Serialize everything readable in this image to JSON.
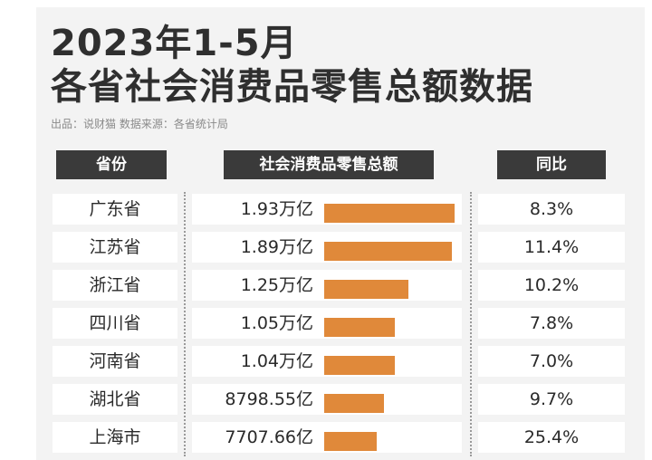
{
  "title_line1": "2023年1-5月",
  "title_line2": "各省社会消费品零售总额数据",
  "source": "出品：说财猫  数据来源：各省统计局",
  "headers": {
    "province": "省份",
    "sales": "社会消费品零售总额",
    "yoy": "同比"
  },
  "colors": {
    "bar": "#e0893a",
    "header_bg": "#3a3a3a",
    "panel_bg": "#f3f3f3"
  },
  "chart_data": {
    "type": "bar",
    "title": "2023年1-5月 各省社会消费品零售总额数据",
    "categories": [
      "广东省",
      "江苏省",
      "浙江省",
      "四川省",
      "河南省",
      "湖北省",
      "上海市"
    ],
    "value_unit": "亿",
    "values": [
      19300,
      18900,
      12500,
      10500,
      10400,
      8798.55,
      7707.66
    ],
    "value_labels": [
      "1.93万亿",
      "1.89万亿",
      "1.25万亿",
      "1.05万亿",
      "1.04万亿",
      "8798.55亿",
      "7707.66亿"
    ],
    "yoy": [
      "8.3%",
      "11.4%",
      "10.2%",
      "7.8%",
      "7.0%",
      "9.7%",
      "25.4%"
    ]
  }
}
